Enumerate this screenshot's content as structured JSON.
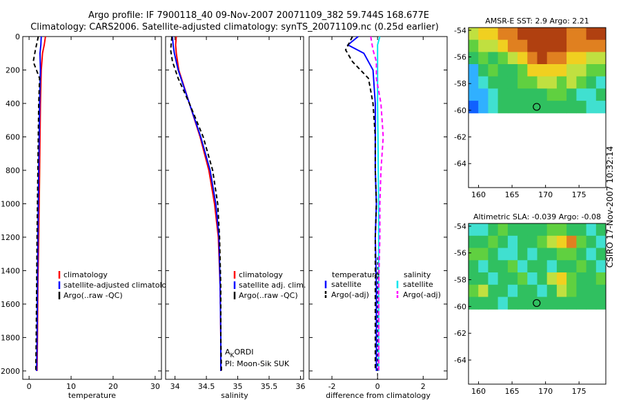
{
  "header": {
    "line1": "Argo profile: IF 7900118_40 09-Nov-2007 20071109_382 59.744S 168.677E",
    "line2": "Climatology: CARS2006. Satellite-adjusted climatology: synTS_20071109.nc (0.25d earlier)"
  },
  "colors": {
    "clim": "#ff0000",
    "sat": "#0000ff",
    "argo": "#000000",
    "sal_sat": "#00e5ee",
    "sal_argo": "#ff00ff"
  },
  "chart_data": [
    {
      "type": "line",
      "id": "temperature",
      "xlabel": "temperature",
      "xlim": [
        -1.5,
        31.5
      ],
      "ylim": [
        0,
        2050
      ],
      "y_reversed": true,
      "xticks": [
        0,
        10,
        20,
        30
      ],
      "yticks": [
        0,
        200,
        400,
        600,
        800,
        1000,
        1200,
        1400,
        1600,
        1800,
        2000
      ],
      "series": [
        {
          "name": "climatology",
          "style": "solid",
          "x": [
            3.9,
            3.6,
            3.2,
            2.9,
            2.7,
            2.6,
            2.5,
            2.4,
            2.3,
            2.1,
            2.0,
            1.9
          ],
          "y": [
            0,
            50,
            100,
            200,
            400,
            600,
            800,
            1000,
            1200,
            1500,
            1800,
            2000
          ]
        },
        {
          "name": "satellite-adjusted climatology",
          "style": "solid",
          "x": [
            2.9,
            2.8,
            2.6,
            2.7,
            2.5,
            2.4,
            2.3,
            2.2,
            2.1,
            2.0,
            1.9,
            1.8
          ],
          "y": [
            0,
            50,
            100,
            200,
            400,
            600,
            800,
            1000,
            1200,
            1500,
            1800,
            2000
          ]
        },
        {
          "name": "Argo(..raw -QC)",
          "style": "dashed",
          "x": [
            2.2,
            1.5,
            1.0,
            2.5,
            2.3,
            2.2,
            2.1,
            2.0,
            1.9,
            1.8,
            1.7,
            1.6
          ],
          "y": [
            0,
            80,
            150,
            250,
            400,
            600,
            800,
            1000,
            1200,
            1500,
            1800,
            2000
          ]
        }
      ],
      "legend": [
        "climatology",
        "satellite-adjusted climatology",
        "Argo(..raw -QC)"
      ]
    },
    {
      "type": "line",
      "id": "salinity",
      "xlabel": "salinity",
      "xlim": [
        33.85,
        36.05
      ],
      "ylim": [
        0,
        2050
      ],
      "y_reversed": true,
      "xticks": [
        34,
        34.5,
        35,
        35.5,
        36
      ],
      "series": [
        {
          "name": "climatology",
          "style": "solid",
          "x": [
            34.02,
            34.01,
            34.02,
            34.06,
            34.23,
            34.4,
            34.54,
            34.63,
            34.69,
            34.72,
            34.73,
            34.73
          ],
          "y": [
            0,
            50,
            100,
            200,
            400,
            600,
            800,
            1000,
            1200,
            1500,
            1800,
            2000
          ]
        },
        {
          "name": "satellite adj. clim.",
          "style": "solid",
          "x": [
            33.96,
            33.97,
            33.99,
            34.05,
            34.23,
            34.41,
            34.56,
            34.65,
            34.7,
            34.72,
            34.73,
            34.73
          ],
          "y": [
            0,
            50,
            100,
            200,
            400,
            600,
            800,
            1000,
            1200,
            1500,
            1800,
            2000
          ]
        },
        {
          "name": "Argo(..raw -QC)",
          "style": "dashed",
          "x": [
            33.95,
            33.93,
            33.96,
            34.05,
            34.23,
            34.45,
            34.6,
            34.68,
            34.71,
            34.73,
            34.73,
            34.74
          ],
          "y": [
            0,
            80,
            150,
            250,
            400,
            600,
            800,
            1000,
            1200,
            1500,
            1800,
            2000
          ]
        }
      ],
      "legend": [
        "climatology",
        "satellite adj. clim.",
        "Argo(..raw -QC)"
      ],
      "annotation": {
        "line1_main": "A",
        "line1_sub": "K",
        "line1_rest": "ORDI",
        "line2": "PI: Moon-Sik SUK"
      }
    },
    {
      "type": "line",
      "id": "difference",
      "xlabel": "difference from climatology",
      "xlim": [
        -3.0,
        3.05
      ],
      "ylim": [
        0,
        2050
      ],
      "y_reversed": true,
      "xticks": [
        -2,
        0,
        2
      ],
      "series": [
        {
          "name": "temperature satellite",
          "style": "solid",
          "color_key": "sat",
          "x": [
            -0.85,
            -1.3,
            -0.6,
            -0.2,
            -0.1,
            -0.1,
            -0.1,
            -0.05,
            -0.1,
            -0.05,
            -0.05,
            -0.05
          ],
          "y": [
            0,
            50,
            100,
            200,
            400,
            600,
            800,
            1000,
            1200,
            1500,
            1800,
            2000
          ]
        },
        {
          "name": "temperature Argo(-adj)",
          "style": "dashed",
          "color_key": "argo",
          "x": [
            -1.1,
            -1.4,
            -1.1,
            -0.4,
            -0.2,
            -0.1,
            -0.1,
            -0.05,
            -0.1,
            -0.1,
            -0.1,
            -0.1
          ],
          "y": [
            0,
            80,
            150,
            250,
            400,
            600,
            800,
            1000,
            1200,
            1500,
            1800,
            2000
          ]
        },
        {
          "name": "salinity satellite",
          "style": "solid",
          "color_key": "sal_sat",
          "x": [
            0.1,
            0.0,
            0.0,
            0.0,
            0.0,
            0.02,
            0.03,
            0.05,
            0.05,
            0.05,
            0.05,
            0.05
          ],
          "y": [
            0,
            50,
            100,
            200,
            400,
            600,
            800,
            1000,
            1200,
            1500,
            1800,
            2000
          ]
        },
        {
          "name": "salinity Argo(-adj)",
          "style": "dashed",
          "color_key": "sal_argo",
          "x": [
            -0.3,
            -0.2,
            -0.05,
            -0.05,
            0.15,
            0.25,
            0.15,
            0.1,
            0.1,
            0.05,
            0.05,
            0.05
          ],
          "y": [
            0,
            80,
            150,
            250,
            400,
            600,
            800,
            1000,
            1200,
            1500,
            1800,
            2000
          ]
        }
      ],
      "legend_groups": [
        {
          "title": "temperature",
          "items": [
            {
              "label": "satellite",
              "style": "solid",
              "color_key": "sat"
            },
            {
              "label": "Argo(-adj)",
              "style": "dashed",
              "color_key": "argo"
            }
          ]
        },
        {
          "title": "salinity",
          "items": [
            {
              "label": "satellite",
              "style": "solid",
              "color_key": "sal_sat"
            },
            {
              "label": "Argo(-adj)",
              "style": "dashed",
              "color_key": "sal_argo"
            }
          ]
        }
      ]
    },
    {
      "type": "heatmap",
      "id": "sst_map",
      "title": "AMSR-E SST: 2.9 Argo: 2.21",
      "xlim": [
        158.5,
        179
      ],
      "ylim": [
        -65.8,
        -53.8
      ],
      "xticks": [
        160,
        165,
        170,
        175
      ],
      "yticks": [
        -54,
        -56,
        -58,
        -60,
        -62,
        -64
      ],
      "data_lat_min": -60.2,
      "marker": {
        "lon": 168.677,
        "lat": -59.744
      },
      "field": [
        [
          6,
          7,
          7,
          8,
          8,
          9,
          9,
          9,
          9,
          9,
          8,
          8,
          9,
          9
        ],
        [
          5,
          6,
          6,
          7,
          8,
          8,
          9,
          9,
          9,
          9,
          8,
          8,
          8,
          8
        ],
        [
          4,
          5,
          4,
          5,
          6,
          7,
          8,
          9,
          8,
          8,
          7,
          7,
          6,
          6
        ],
        [
          2,
          4,
          5,
          4,
          4,
          5,
          7,
          7,
          7,
          7,
          6,
          6,
          5,
          5
        ],
        [
          2,
          3,
          4,
          4,
          4,
          5,
          5,
          6,
          6,
          5,
          6,
          5,
          4,
          3
        ],
        [
          2,
          2,
          3,
          4,
          4,
          4,
          4,
          4,
          5,
          5,
          4,
          3,
          3,
          4
        ],
        [
          1,
          2,
          3,
          4,
          4,
          4,
          4,
          4,
          4,
          4,
          4,
          4,
          3,
          3
        ]
      ]
    },
    {
      "type": "heatmap",
      "id": "sla_map",
      "title": "Altimetric SLA: -0.039 Argo: -0.08",
      "xlim": [
        158.5,
        179
      ],
      "ylim": [
        -65.8,
        -53.8
      ],
      "xticks": [
        160,
        165,
        170,
        175
      ],
      "yticks": [
        -54,
        -56,
        -58,
        -60,
        -62,
        -64
      ],
      "data_lat_min": -60.2,
      "marker": {
        "lon": 168.677,
        "lat": -59.744
      },
      "field": [
        [
          3,
          3,
          4,
          5,
          4,
          4,
          4,
          4,
          5,
          5,
          4,
          4,
          3,
          4
        ],
        [
          4,
          4,
          5,
          4,
          3,
          4,
          4,
          5,
          6,
          7,
          8,
          5,
          4,
          3
        ],
        [
          5,
          5,
          4,
          3,
          3,
          4,
          3,
          4,
          4,
          5,
          5,
          4,
          3,
          4
        ],
        [
          4,
          3,
          4,
          4,
          5,
          3,
          4,
          4,
          3,
          4,
          4,
          5,
          4,
          3
        ],
        [
          4,
          4,
          3,
          4,
          4,
          5,
          3,
          4,
          6,
          7,
          5,
          4,
          4,
          5
        ],
        [
          5,
          6,
          4,
          4,
          3,
          4,
          4,
          3,
          4,
          6,
          5,
          4,
          4,
          4
        ],
        [
          4,
          4,
          4,
          3,
          4,
          4,
          4,
          4,
          4,
          4,
          4,
          4,
          4,
          4
        ]
      ]
    }
  ],
  "footer": {
    "stamp": "CSIRO 17-Nov-2007 10:32:14"
  }
}
